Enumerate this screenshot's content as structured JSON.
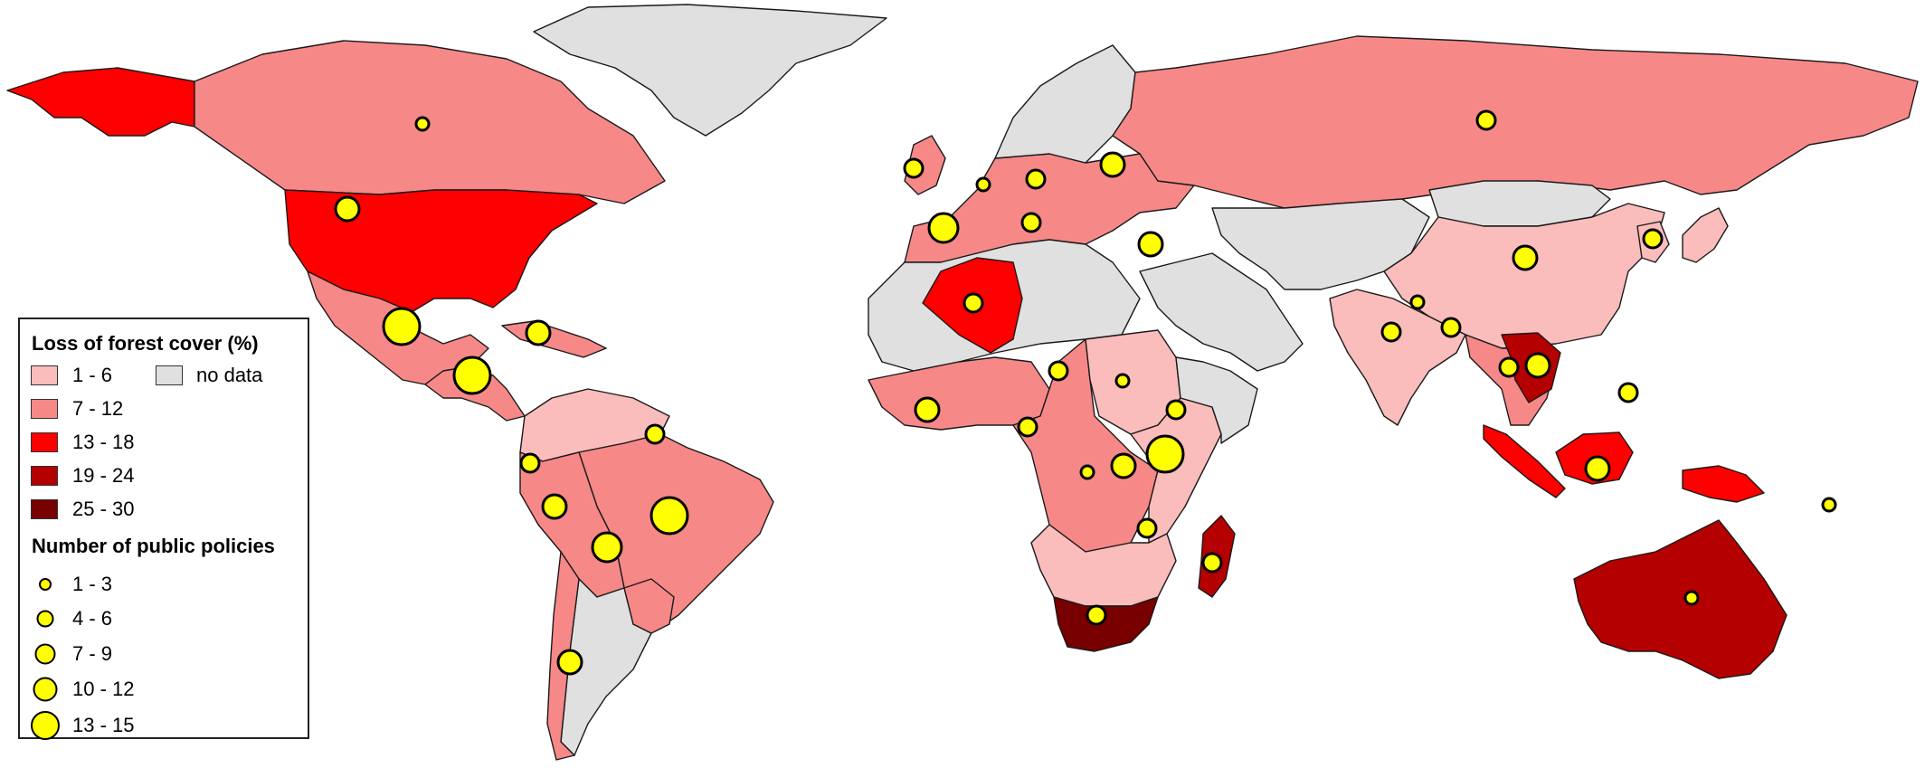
{
  "colors": {
    "no_data": "#e0e0e0",
    "c1_6": "#fbbcbc",
    "c7_12": "#f78888",
    "c13_18": "#ff0000",
    "c19_24": "#b40000",
    "c25_30": "#780000",
    "bubble": "#ffff00"
  },
  "legend": {
    "forest_title": "Loss of forest cover (%)",
    "forest_classes": [
      "1 - 6",
      "7 - 12",
      "13 - 18",
      "19 - 24",
      "25 - 30"
    ],
    "no_data_label": "no data",
    "policy_title": "Number of public policies",
    "policy_classes": [
      "1 - 3",
      "4 - 6",
      "7 - 9",
      "10 - 12",
      "13 - 15"
    ]
  },
  "regions": [
    {
      "name": "greenland",
      "cls": "no_data"
    },
    {
      "name": "alaska",
      "cls": "c13_18"
    },
    {
      "name": "canada",
      "cls": "c7_12"
    },
    {
      "name": "united-states",
      "cls": "c13_18"
    },
    {
      "name": "mexico",
      "cls": "c7_12"
    },
    {
      "name": "central-america",
      "cls": "c7_12"
    },
    {
      "name": "caribbean",
      "cls": "c7_12"
    },
    {
      "name": "colombia-venezuela",
      "cls": "c1_6"
    },
    {
      "name": "brazil",
      "cls": "c7_12"
    },
    {
      "name": "peru-bolivia",
      "cls": "c7_12"
    },
    {
      "name": "southern-cone",
      "cls": "no_data"
    },
    {
      "name": "paraguay",
      "cls": "c7_12"
    },
    {
      "name": "chile",
      "cls": "c7_12"
    },
    {
      "name": "europe-west",
      "cls": "c7_12"
    },
    {
      "name": "scandinavia",
      "cls": "no_data"
    },
    {
      "name": "uk-ireland",
      "cls": "c7_12"
    },
    {
      "name": "russia",
      "cls": "c7_12"
    },
    {
      "name": "north-africa",
      "cls": "no_data"
    },
    {
      "name": "algeria",
      "cls": "c13_18"
    },
    {
      "name": "west-africa",
      "cls": "c7_12"
    },
    {
      "name": "central-africa",
      "cls": "c7_12"
    },
    {
      "name": "sudan",
      "cls": "c1_6"
    },
    {
      "name": "east-africa",
      "cls": "c1_6"
    },
    {
      "name": "horn-of-africa",
      "cls": "no_data"
    },
    {
      "name": "southern-africa",
      "cls": "c1_6"
    },
    {
      "name": "south-africa",
      "cls": "c25_30"
    },
    {
      "name": "madagascar",
      "cls": "c19_24"
    },
    {
      "name": "middle-east",
      "cls": "no_data"
    },
    {
      "name": "central-asia",
      "cls": "no_data"
    },
    {
      "name": "mongolia",
      "cls": "no_data"
    },
    {
      "name": "china",
      "cls": "c1_6"
    },
    {
      "name": "india",
      "cls": "c1_6"
    },
    {
      "name": "southeast-asia",
      "cls": "c7_12"
    },
    {
      "name": "cambodia",
      "cls": "c19_24"
    },
    {
      "name": "sumatra",
      "cls": "c13_18"
    },
    {
      "name": "borneo",
      "cls": "c13_18"
    },
    {
      "name": "new-guinea",
      "cls": "c13_18"
    },
    {
      "name": "japan-korea",
      "cls": "c1_6"
    },
    {
      "name": "australia",
      "cls": "c19_24"
    }
  ],
  "policy_markers": [
    {
      "region": "canada",
      "policies": 2
    },
    {
      "region": "united-states",
      "policies": 9
    },
    {
      "region": "mexico",
      "policies": 14
    },
    {
      "region": "central-america",
      "policies": 14
    },
    {
      "region": "caribbean",
      "policies": 8
    },
    {
      "region": "venezuela",
      "policies": 6
    },
    {
      "region": "ecuador",
      "policies": 5
    },
    {
      "region": "peru",
      "policies": 9
    },
    {
      "region": "brazil",
      "policies": 15
    },
    {
      "region": "bolivia",
      "policies": 11
    },
    {
      "region": "chile",
      "policies": 8
    },
    {
      "region": "uk",
      "policies": 5
    },
    {
      "region": "spain",
      "policies": 11
    },
    {
      "region": "france",
      "policies": 3
    },
    {
      "region": "germany",
      "policies": 4
    },
    {
      "region": "italy",
      "policies": 5
    },
    {
      "region": "ukraine",
      "policies": 8
    },
    {
      "region": "turkey",
      "policies": 9
    },
    {
      "region": "russia",
      "policies": 5
    },
    {
      "region": "algeria",
      "policies": 4
    },
    {
      "region": "west-africa",
      "policies": 7
    },
    {
      "region": "nigeria",
      "policies": 6
    },
    {
      "region": "cameroon",
      "policies": 4
    },
    {
      "region": "sudan",
      "policies": 2
    },
    {
      "region": "ethiopia",
      "policies": 5
    },
    {
      "region": "kenya",
      "policies": 13
    },
    {
      "region": "congo",
      "policies": 8
    },
    {
      "region": "zambia",
      "policies": 2
    },
    {
      "region": "mozambique",
      "policies": 4
    },
    {
      "region": "south-africa",
      "policies": 5
    },
    {
      "region": "madagascar",
      "policies": 4
    },
    {
      "region": "india",
      "policies": 5
    },
    {
      "region": "nepal",
      "policies": 3
    },
    {
      "region": "china",
      "policies": 9
    },
    {
      "region": "korea",
      "policies": 4
    },
    {
      "region": "myanmar",
      "policies": 4
    },
    {
      "region": "thailand",
      "policies": 6
    },
    {
      "region": "vietnam",
      "policies": 9
    },
    {
      "region": "philippines",
      "policies": 5
    },
    {
      "region": "indonesia",
      "policies": 9
    },
    {
      "region": "papua-new-guinea",
      "policies": 2
    },
    {
      "region": "australia",
      "policies": 2
    }
  ]
}
